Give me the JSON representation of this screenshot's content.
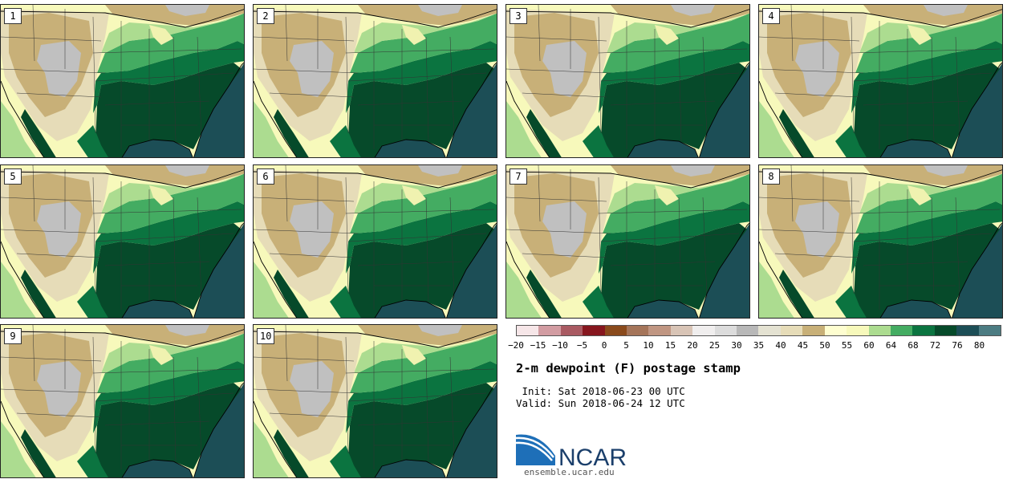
{
  "stamps": [
    {
      "label": "1"
    },
    {
      "label": "2"
    },
    {
      "label": "3"
    },
    {
      "label": "4"
    },
    {
      "label": "5"
    },
    {
      "label": "6"
    },
    {
      "label": "7"
    },
    {
      "label": "8"
    },
    {
      "label": "9"
    },
    {
      "label": "10"
    }
  ],
  "colorbar": {
    "ticks": [
      "−20",
      "−15",
      "−10",
      "−5",
      "0",
      "5",
      "10",
      "15",
      "20",
      "25",
      "30",
      "35",
      "40",
      "45",
      "50",
      "55",
      "60",
      "64",
      "68",
      "72",
      "76",
      "80"
    ],
    "colors": [
      "#f6e6e8",
      "#d29ca2",
      "#a95a62",
      "#86161e",
      "#8a4a1c",
      "#a5755a",
      "#c09682",
      "#d8c4b6",
      "#f0eeee",
      "#dcdcdc",
      "#b8b8b8",
      "#e4e2d2",
      "#e6dcb8",
      "#c8b078",
      "#fefed0",
      "#f7f9bb",
      "#acdc90",
      "#44ac62",
      "#0b7440",
      "#064a2a",
      "#1c4e56",
      "#4c7c82"
    ]
  },
  "title": "2-m dewpoint (F) postage stamp",
  "init_line": " Init: Sat 2018-06-23 00 UTC",
  "valid_line": "Valid: Sun 2018-06-24 12 UTC",
  "logo": {
    "text": "NCAR",
    "url": "ensemble.ucar.edu"
  },
  "map_colors": {
    "ocean": "#1c4e56",
    "very_humid": "#064a2a",
    "humid": "#0b7440",
    "moist": "#44ac62",
    "light_moist": "#acdc90",
    "pale": "#f7f9bb",
    "dry": "#c8b078",
    "dry_light": "#e6dcb8",
    "very_dry": "#c0c0c0"
  }
}
